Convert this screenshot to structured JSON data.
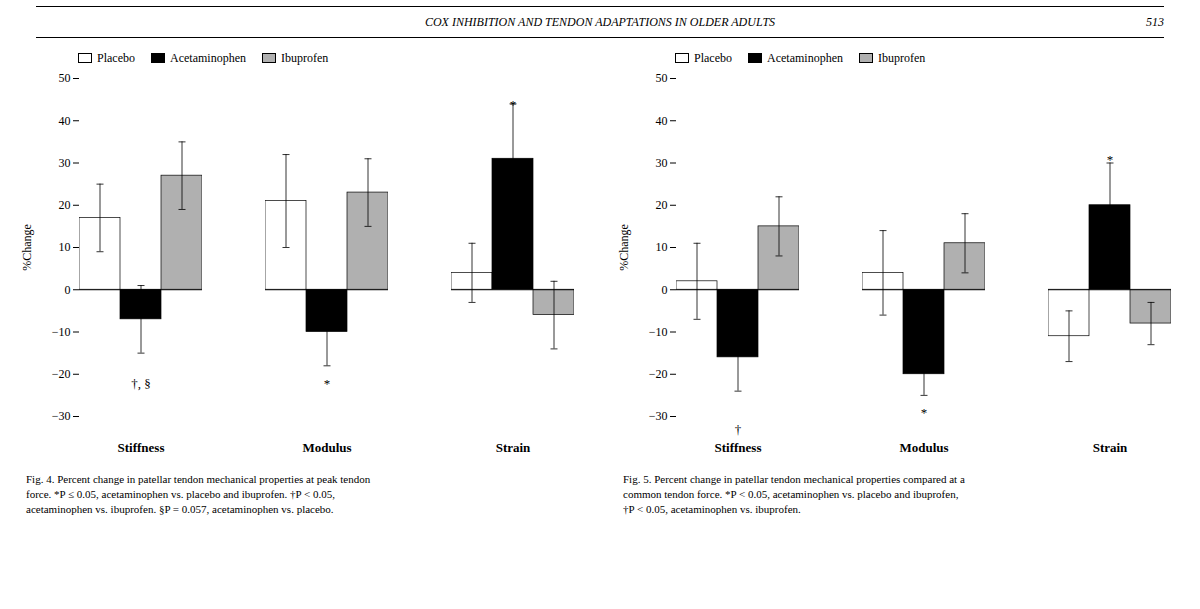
{
  "title": "COX INHIBITION AND TENDON ADAPTATIONS IN OLDER ADULTS",
  "annotations": [
    {
      "text": "513"
    }
  ],
  "chart_data": [
    {
      "type": "bar",
      "categories": [
        "Stiffness",
        "Modulus",
        "Strain"
      ],
      "series": [
        {
          "name": "Placebo",
          "color": "#ffffff",
          "values": [
            17,
            21,
            4
          ],
          "errors": [
            8,
            11,
            7
          ]
        },
        {
          "name": "Acetaminophen",
          "color": "#000000",
          "values": [
            -7,
            -10,
            31
          ],
          "errors": [
            8,
            8,
            13
          ]
        },
        {
          "name": "Ibuprofen",
          "color": "#b0b0b0",
          "values": [
            27,
            23,
            -6
          ],
          "errors": [
            8,
            8,
            8
          ]
        }
      ],
      "ylabel": "%Change",
      "ylim": [
        -30,
        50
      ],
      "yticks": [
        -30,
        -20,
        -10,
        0,
        10,
        20,
        30,
        40,
        50
      ],
      "legend": "upper left",
      "annotations": [
        {
          "category": "Stiffness",
          "series": "Acetaminophen",
          "y": -21,
          "text": "†, §"
        },
        {
          "category": "Modulus",
          "series": "Acetaminophen",
          "y": -21,
          "text": "*"
        },
        {
          "category": "Strain",
          "series": "Acetaminophen",
          "y": 45,
          "text": "*"
        }
      ],
      "caption": [
        "Fig. 4. Percent change in patellar tendon mechanical properties at peak tendon",
        "force. *P ≤ 0.05, acetaminophen vs. placebo and ibuprofen. †P < 0.05,",
        "acetaminophen vs. ibuprofen. §P = 0.057, acetaminophen vs. placebo."
      ]
    },
    {
      "type": "bar",
      "categories": [
        "Stiffness",
        "Modulus",
        "Strain"
      ],
      "series": [
        {
          "name": "Placebo",
          "color": "#ffffff",
          "values": [
            2,
            4,
            -11
          ],
          "errors": [
            9,
            10,
            6
          ]
        },
        {
          "name": "Acetaminophen",
          "color": "#000000",
          "values": [
            -16,
            -20,
            20
          ],
          "errors": [
            8,
            5,
            10
          ]
        },
        {
          "name": "Ibuprofen",
          "color": "#b0b0b0",
          "values": [
            15,
            11,
            -8
          ],
          "errors": [
            7,
            7,
            5
          ]
        }
      ],
      "ylabel": "%Change",
      "ylim": [
        -30,
        50
      ],
      "yticks": [
        -30,
        -20,
        -10,
        0,
        10,
        20,
        30,
        40,
        50
      ],
      "legend": "upper left",
      "annotations": [
        {
          "category": "Stiffness",
          "series": "Acetaminophen",
          "y": -32,
          "text": "†"
        },
        {
          "category": "Modulus",
          "series": "Acetaminophen",
          "y": -28,
          "text": "*"
        },
        {
          "category": "Strain",
          "series": "Acetaminophen",
          "y": 32,
          "text": "*"
        }
      ],
      "caption": [
        "Fig. 5. Percent change in patellar tendon mechanical properties compared at a",
        "common tendon force. *P < 0.05, acetaminophen vs. placebo and ibuprofen,",
        "†P < 0.05, acetaminophen vs. ibuprofen."
      ]
    }
  ]
}
